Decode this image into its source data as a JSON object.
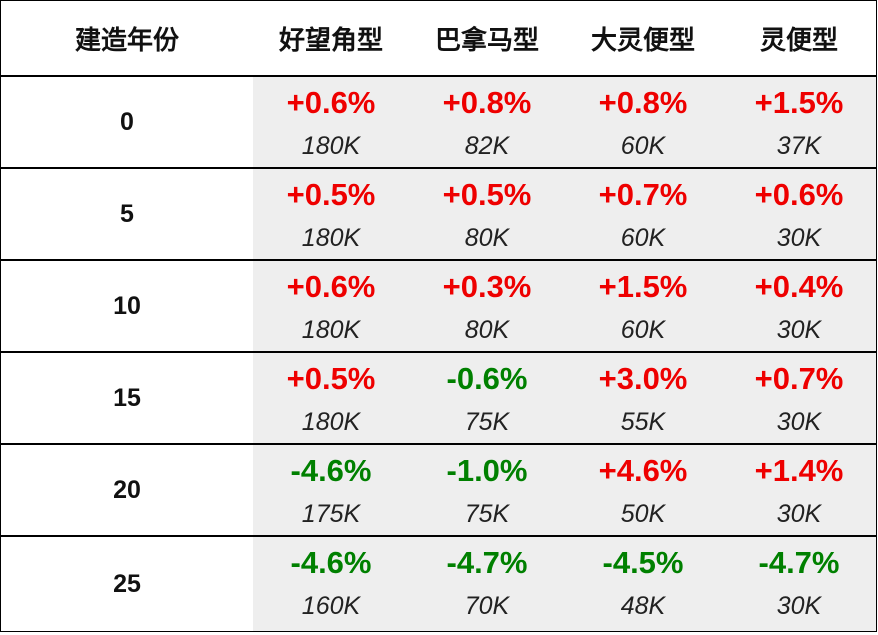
{
  "header": {
    "age_label": "建造年份",
    "ship_types": [
      "好望角型",
      "巴拿马型",
      "大灵便型",
      "灵便型"
    ]
  },
  "colors": {
    "positive": "#ee0000",
    "negative": "#008000",
    "data_bg": "#eeeeee"
  },
  "rows": [
    {
      "age": "0",
      "cells": [
        {
          "pct": "+0.6%",
          "price": "180K"
        },
        {
          "pct": "+0.8%",
          "price": "82K"
        },
        {
          "pct": "+0.8%",
          "price": "60K"
        },
        {
          "pct": "+1.5%",
          "price": "37K"
        }
      ]
    },
    {
      "age": "5",
      "cells": [
        {
          "pct": "+0.5%",
          "price": "180K"
        },
        {
          "pct": "+0.5%",
          "price": "80K"
        },
        {
          "pct": "+0.7%",
          "price": "60K"
        },
        {
          "pct": "+0.6%",
          "price": "30K"
        }
      ]
    },
    {
      "age": "10",
      "cells": [
        {
          "pct": "+0.6%",
          "price": "180K"
        },
        {
          "pct": "+0.3%",
          "price": "80K"
        },
        {
          "pct": "+1.5%",
          "price": "60K"
        },
        {
          "pct": "+0.4%",
          "price": "30K"
        }
      ]
    },
    {
      "age": "15",
      "cells": [
        {
          "pct": "+0.5%",
          "price": "180K"
        },
        {
          "pct": "-0.6%",
          "price": "75K"
        },
        {
          "pct": "+3.0%",
          "price": "55K"
        },
        {
          "pct": "+0.7%",
          "price": "30K"
        }
      ]
    },
    {
      "age": "20",
      "cells": [
        {
          "pct": "-4.6%",
          "price": "175K"
        },
        {
          "pct": "-1.0%",
          "price": "75K"
        },
        {
          "pct": "+4.6%",
          "price": "50K"
        },
        {
          "pct": "+1.4%",
          "price": "30K"
        }
      ]
    },
    {
      "age": "25",
      "cells": [
        {
          "pct": "-4.6%",
          "price": "160K"
        },
        {
          "pct": "-4.7%",
          "price": "70K"
        },
        {
          "pct": "-4.5%",
          "price": "48K"
        },
        {
          "pct": "-4.7%",
          "price": "30K"
        }
      ]
    }
  ]
}
